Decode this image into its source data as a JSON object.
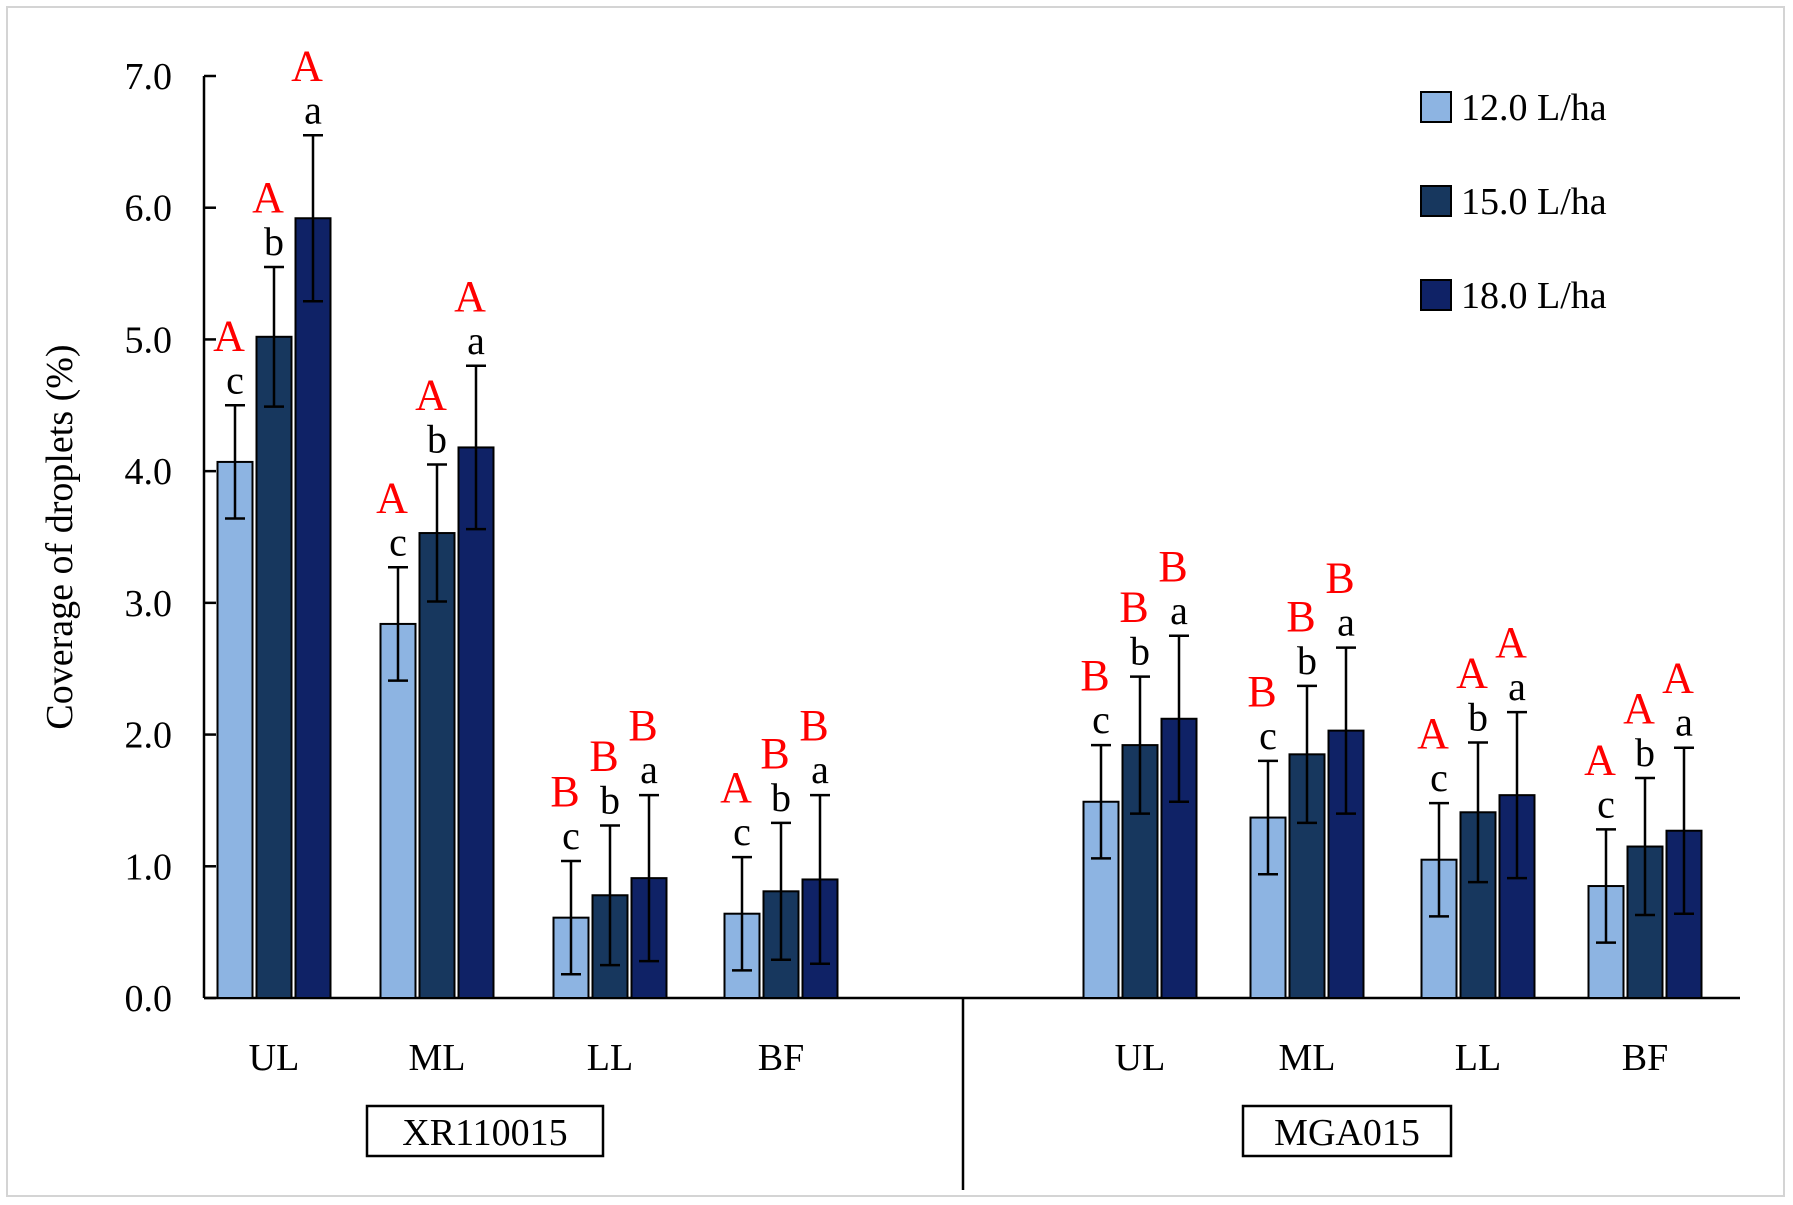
{
  "chart_data": {
    "type": "bar",
    "ylabel": "Coverage of droplets (%)",
    "ylim": [
      0,
      7
    ],
    "yticks": [
      "0.0",
      "1.0",
      "2.0",
      "3.0",
      "4.0",
      "5.0",
      "6.0",
      "7.0"
    ],
    "grid": false,
    "legend_position": "top-right",
    "groups": [
      {
        "name": "XR110015",
        "categories": [
          "UL",
          "ML",
          "LL",
          "BF"
        ]
      },
      {
        "name": "MGA015",
        "categories": [
          "UL",
          "ML",
          "LL",
          "BF"
        ]
      }
    ],
    "series": [
      {
        "name": "12.0 L/ha",
        "color": "#8db4e2",
        "values": [
          4.07,
          2.84,
          0.61,
          0.64,
          1.49,
          1.37,
          1.05,
          0.85
        ],
        "errors": [
          0.43,
          0.43,
          0.43,
          0.43,
          0.43,
          0.43,
          0.43,
          0.43
        ],
        "letters": [
          "c",
          "c",
          "c",
          "c",
          "c",
          "c",
          "c",
          "c"
        ],
        "capitals": [
          "A",
          "A",
          "B",
          "A",
          "B",
          "B",
          "A",
          "A"
        ]
      },
      {
        "name": "15.0 L/ha",
        "color": "#17375e",
        "values": [
          5.02,
          3.53,
          0.78,
          0.81,
          1.92,
          1.85,
          1.41,
          1.15
        ],
        "errors": [
          0.53,
          0.52,
          0.53,
          0.52,
          0.52,
          0.52,
          0.53,
          0.52
        ],
        "letters": [
          "b",
          "b",
          "b",
          "b",
          "b",
          "b",
          "b",
          "b"
        ],
        "capitals": [
          "A",
          "A",
          "B",
          "B",
          "B",
          "B",
          "A",
          "A"
        ]
      },
      {
        "name": "18.0 L/ha",
        "color": "#0f2266",
        "values": [
          5.92,
          4.18,
          0.91,
          0.9,
          2.12,
          2.03,
          1.54,
          1.27
        ],
        "errors": [
          0.63,
          0.62,
          0.63,
          0.64,
          0.63,
          0.63,
          0.63,
          0.63
        ],
        "letters": [
          "a",
          "a",
          "a",
          "a",
          "a",
          "a",
          "a",
          "a"
        ],
        "capitals": [
          "A",
          "A",
          "B",
          "B",
          "B",
          "B",
          "A",
          "A"
        ]
      }
    ]
  }
}
